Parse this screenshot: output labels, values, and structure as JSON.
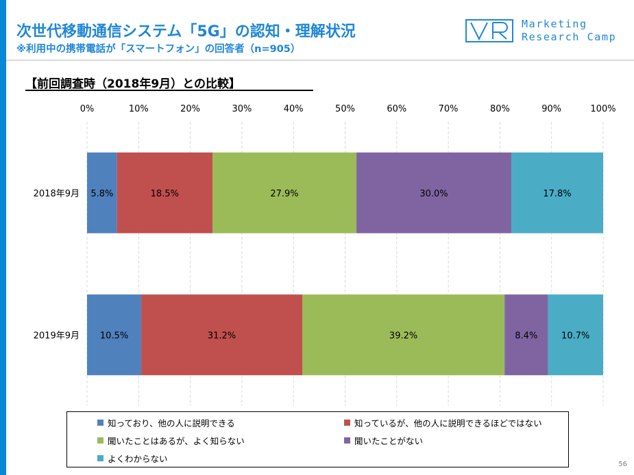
{
  "header": {
    "title": "次世代移動通信システム「5G」の認知・理解状況",
    "subtitle": "※利用中の携帯電話が「スマートフォン」の回答者（n=905）"
  },
  "brand": {
    "line1": "Marketing",
    "line2": "Research Camp",
    "color": "#1f87d6"
  },
  "section": {
    "heading": "【前回調査時（2018年9月）との比較】"
  },
  "chart_data": {
    "type": "bar",
    "orientation": "horizontal",
    "stacked": true,
    "percent_scale": true,
    "xlim": [
      0,
      100
    ],
    "x_ticks": [
      "0%",
      "10%",
      "20%",
      "30%",
      "40%",
      "50%",
      "60%",
      "70%",
      "80%",
      "90%",
      "100%"
    ],
    "x_axis_position": "top",
    "grid": "vertical dashed",
    "categories": [
      "2018年9月",
      "2019年9月"
    ],
    "series": [
      {
        "name": "知っており、他の人に説明できる",
        "color": "#4f81bd",
        "values": [
          5.8,
          10.5
        ],
        "labels": [
          "5.8%",
          "10.5%"
        ]
      },
      {
        "name": "知っているが、他の人に説明できるほどではない",
        "color": "#c0504d",
        "values": [
          18.5,
          31.2
        ],
        "labels": [
          "18.5%",
          "31.2%"
        ]
      },
      {
        "name": "聞いたことはあるが、よく知らない",
        "color": "#9bbb59",
        "values": [
          27.9,
          39.2
        ],
        "labels": [
          "27.9%",
          "39.2%"
        ]
      },
      {
        "name": "聞いたことがない",
        "color": "#8064a2",
        "values": [
          30.0,
          8.4
        ],
        "labels": [
          "30.0%",
          "8.4%"
        ]
      },
      {
        "name": "よくわからない",
        "color": "#4bacc6",
        "values": [
          17.8,
          10.7
        ],
        "labels": [
          "17.8%",
          "10.7%"
        ]
      }
    ],
    "legend_position": "bottom"
  },
  "footer": {
    "page_number": "56"
  }
}
